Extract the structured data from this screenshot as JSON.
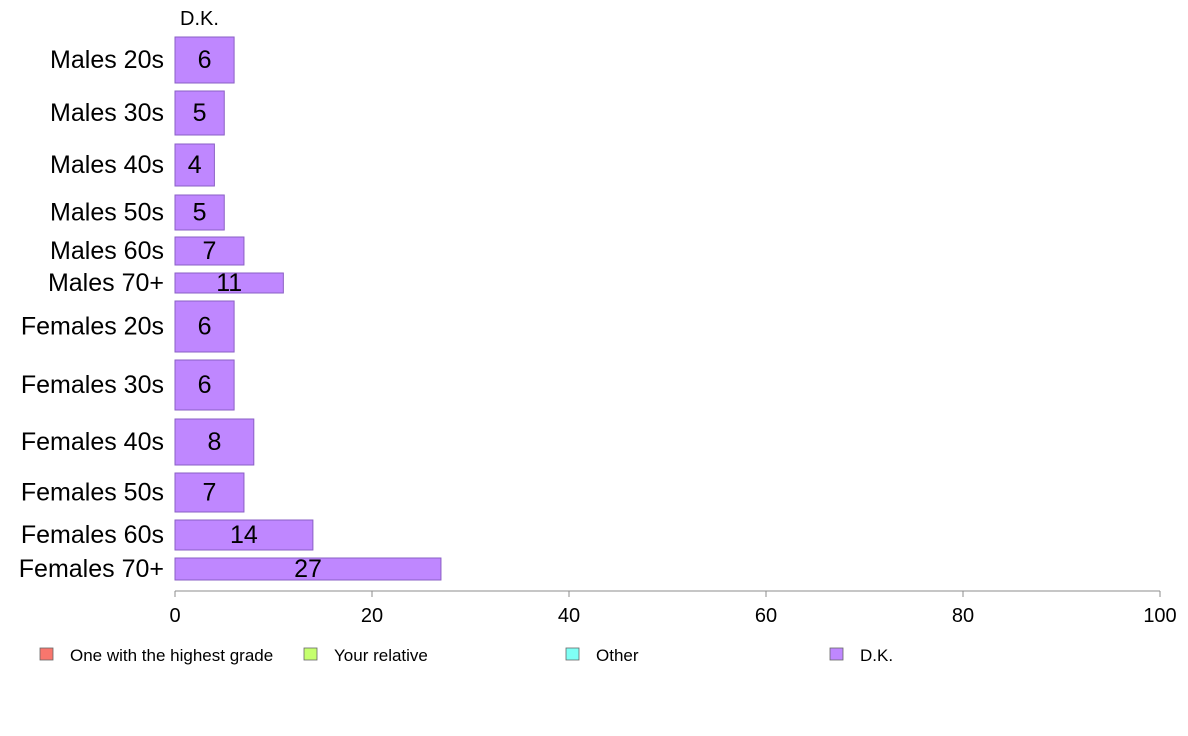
{
  "chart_data": {
    "type": "bar",
    "orientation": "horizontal",
    "title": "D.K.",
    "xlabel": "",
    "ylabel": "",
    "xlim": [
      0,
      100
    ],
    "xticks": [
      0,
      20,
      40,
      60,
      80,
      100
    ],
    "xtick_labels": [
      "0",
      "20",
      "40",
      "60",
      "80",
      "100"
    ],
    "grid": false,
    "categories": [
      "Males 20s",
      "Males 30s",
      "Males 40s",
      "Males 50s",
      "Males 60s",
      "Males 70+",
      "Females 20s",
      "Females 30s",
      "Females 40s",
      "Females 50s",
      "Females 60s",
      "Females 70+"
    ],
    "series": [
      {
        "name": "D.K.",
        "color": "#bf87ff",
        "values": [
          6,
          5,
          4,
          5,
          7,
          11,
          6,
          6,
          8,
          7,
          14,
          27
        ],
        "value_labels": [
          "6",
          "5",
          "4",
          "5",
          "7",
          "11",
          "6",
          "6",
          "8",
          "7",
          "14",
          "27"
        ]
      }
    ],
    "legend": {
      "placement": "bottom",
      "entries": [
        {
          "label": "One with the highest grade",
          "color": "#f8766d"
        },
        {
          "label": "Your relative",
          "color": "#c5ff6e"
        },
        {
          "label": "Other",
          "color": "#7ffff5"
        },
        {
          "label": "D.K.",
          "color": "#bf87ff"
        }
      ]
    }
  }
}
